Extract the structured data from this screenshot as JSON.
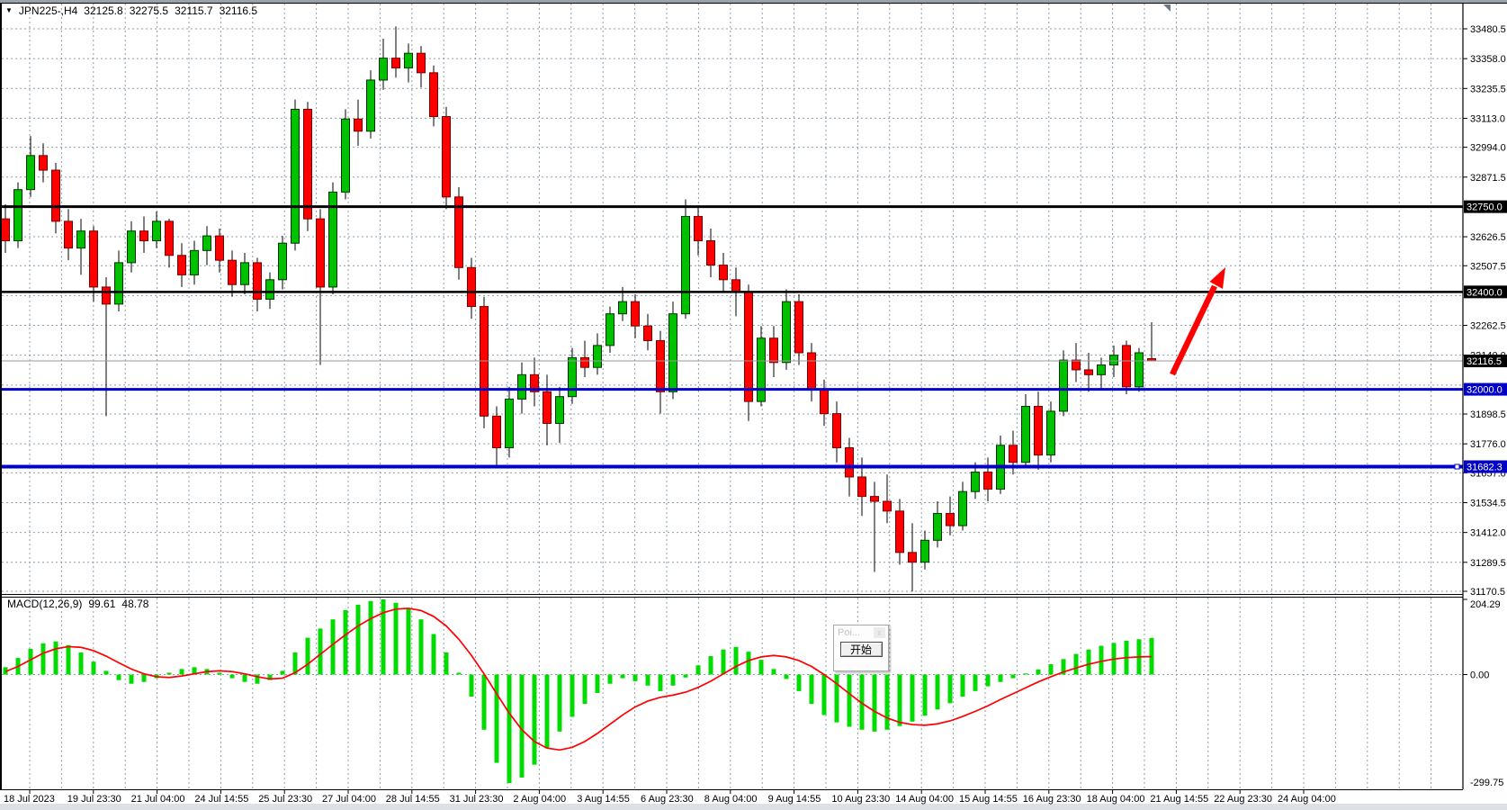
{
  "titlebar": {
    "dropdown_icon": "▼",
    "symbol_period": "JPN225-,H4",
    "open": "32125.8",
    "high": "32275.5",
    "low": "32115.7",
    "close": "32116.5"
  },
  "popup": {
    "title": "Poi...",
    "close_icon": "x",
    "start_button": "开始"
  },
  "chart_data": {
    "type": "candlestick",
    "title": "JPN225-,H4",
    "timeframe": "H4",
    "ylim": [
      31170.5,
      33480.5
    ],
    "grid_color": "#8d9cab",
    "colors": {
      "up": "#00c000",
      "down": "#ff0000",
      "up_border": "#003300",
      "down_border": "#7a0000",
      "histogram": "#00dc00",
      "signal": "#ff0000",
      "black_line": "#000000",
      "blue_line": "#0000c8",
      "arrow": "#ff0000",
      "current_price_line": "#9a9a9a"
    },
    "price_axis": {
      "grid_labels": [
        33480.5,
        33358.0,
        33235.5,
        33113.0,
        32994.0,
        32871.5,
        32626.5,
        32507.5,
        32262.5,
        32140.0,
        31898.5,
        31776.0,
        31657.0,
        31534.5,
        31412.0,
        31289.5,
        31170.5
      ],
      "hidden_grid_prices": [
        32749.0,
        32385.0,
        32017.5
      ]
    },
    "current_price": 32116.5,
    "hlines": [
      {
        "price": 32750.0,
        "label": "32750.0",
        "color": "#000000",
        "width": 3
      },
      {
        "price": 32400.0,
        "label": "32400.0",
        "color": "#000000",
        "width": 2.5
      },
      {
        "price": 32000.0,
        "label": "32000.0",
        "color": "#0000c8",
        "width": 3
      },
      {
        "price": 31682.3,
        "label": "31682.3",
        "color": "#0000c8",
        "width": 4
      }
    ],
    "candles": [
      [
        32700,
        32760,
        32560,
        32610
      ],
      [
        32610,
        32850,
        32580,
        32820
      ],
      [
        32820,
        33040,
        32790,
        32960
      ],
      [
        32960,
        33010,
        32850,
        32900
      ],
      [
        32900,
        32930,
        32640,
        32690
      ],
      [
        32690,
        32740,
        32530,
        32580
      ],
      [
        32580,
        32700,
        32470,
        32650
      ],
      [
        32650,
        32670,
        32360,
        32420
      ],
      [
        32420,
        32460,
        31890,
        32350
      ],
      [
        32350,
        32570,
        32320,
        32520
      ],
      [
        32520,
        32690,
        32480,
        32650
      ],
      [
        32650,
        32710,
        32560,
        32610
      ],
      [
        32610,
        32730,
        32580,
        32690
      ],
      [
        32690,
        32700,
        32500,
        32550
      ],
      [
        32550,
        32600,
        32420,
        32470
      ],
      [
        32470,
        32610,
        32430,
        32570
      ],
      [
        32570,
        32670,
        32510,
        32630
      ],
      [
        32630,
        32660,
        32480,
        32530
      ],
      [
        32530,
        32570,
        32380,
        32430
      ],
      [
        32430,
        32560,
        32390,
        32520
      ],
      [
        32520,
        32540,
        32320,
        32370
      ],
      [
        32370,
        32480,
        32330,
        32450
      ],
      [
        32450,
        32630,
        32410,
        32600
      ],
      [
        32600,
        33190,
        32570,
        33150
      ],
      [
        33150,
        33180,
        32650,
        32700
      ],
      [
        32700,
        32740,
        32100,
        32420
      ],
      [
        32420,
        32850,
        32390,
        32810
      ],
      [
        32810,
        33150,
        32780,
        33110
      ],
      [
        33110,
        33190,
        33000,
        33060
      ],
      [
        33060,
        33310,
        33030,
        33270
      ],
      [
        33270,
        33440,
        33230,
        33360
      ],
      [
        33360,
        33490,
        33280,
        33320
      ],
      [
        33320,
        33420,
        33260,
        33380
      ],
      [
        33380,
        33410,
        33240,
        33300
      ],
      [
        33300,
        33330,
        33080,
        33120
      ],
      [
        33120,
        33160,
        32740,
        32790
      ],
      [
        32790,
        32830,
        32450,
        32500
      ],
      [
        32500,
        32540,
        32290,
        32340
      ],
      [
        32340,
        32380,
        31840,
        31890
      ],
      [
        31890,
        31930,
        31690,
        31760
      ],
      [
        31760,
        32010,
        31720,
        31960
      ],
      [
        31960,
        32110,
        31900,
        32060
      ],
      [
        32060,
        32130,
        31930,
        31990
      ],
      [
        31990,
        32060,
        31770,
        31860
      ],
      [
        31860,
        32010,
        31780,
        31970
      ],
      [
        31970,
        32170,
        31940,
        32130
      ],
      [
        32130,
        32200,
        32050,
        32090
      ],
      [
        32090,
        32230,
        32060,
        32180
      ],
      [
        32180,
        32340,
        32150,
        32310
      ],
      [
        32310,
        32420,
        32280,
        32360
      ],
      [
        32360,
        32390,
        32210,
        32260
      ],
      [
        32260,
        32310,
        32160,
        32200
      ],
      [
        32200,
        32240,
        31900,
        31990
      ],
      [
        31990,
        32360,
        31960,
        32310
      ],
      [
        32310,
        32780,
        32290,
        32710
      ],
      [
        32710,
        32750,
        32550,
        32610
      ],
      [
        32610,
        32660,
        32460,
        32510
      ],
      [
        32510,
        32560,
        32400,
        32450
      ],
      [
        32450,
        32500,
        32300,
        32400
      ],
      [
        32400,
        32430,
        31870,
        31950
      ],
      [
        31950,
        32260,
        31930,
        32210
      ],
      [
        32210,
        32260,
        32050,
        32110
      ],
      [
        32110,
        32410,
        32080,
        32360
      ],
      [
        32360,
        32390,
        32100,
        32150
      ],
      [
        32150,
        32190,
        31950,
        32000
      ],
      [
        32000,
        32040,
        31850,
        31900
      ],
      [
        31900,
        31950,
        31700,
        31760
      ],
      [
        31760,
        31800,
        31560,
        31640
      ],
      [
        31640,
        31720,
        31480,
        31560
      ],
      [
        31560,
        31620,
        31250,
        31540
      ],
      [
        31540,
        31650,
        31450,
        31500
      ],
      [
        31500,
        31550,
        31280,
        31330
      ],
      [
        31330,
        31450,
        31170,
        31290
      ],
      [
        31290,
        31420,
        31260,
        31380
      ],
      [
        31380,
        31540,
        31350,
        31490
      ],
      [
        31490,
        31560,
        31400,
        31440
      ],
      [
        31440,
        31620,
        31420,
        31580
      ],
      [
        31580,
        31700,
        31550,
        31660
      ],
      [
        31660,
        31720,
        31540,
        31590
      ],
      [
        31590,
        31810,
        31570,
        31770
      ],
      [
        31770,
        31830,
        31650,
        31700
      ],
      [
        31700,
        31980,
        31680,
        31930
      ],
      [
        31930,
        31990,
        31670,
        31730
      ],
      [
        31730,
        31950,
        31700,
        31910
      ],
      [
        31910,
        32160,
        31890,
        32120
      ],
      [
        32120,
        32190,
        32030,
        32080
      ],
      [
        32080,
        32150,
        31990,
        32060
      ],
      [
        32060,
        32130,
        32000,
        32100
      ],
      [
        32100,
        32180,
        32050,
        32140
      ],
      [
        32180,
        32200,
        31980,
        32010
      ],
      [
        32010,
        32170,
        31990,
        32150
      ],
      [
        32125.8,
        32275.5,
        32115.7,
        32116.5
      ]
    ],
    "macd": {
      "label": "MACD(12,26,9)",
      "macd_value": "99.61",
      "signal_value": "48.78",
      "axis_max": 204.29,
      "axis_zero": "0.00",
      "axis_min": -299.75,
      "histogram": [
        20,
        45,
        70,
        85,
        90,
        80,
        60,
        35,
        10,
        -15,
        -25,
        -20,
        -10,
        5,
        15,
        20,
        15,
        5,
        -10,
        -20,
        -25,
        -15,
        10,
        60,
        100,
        125,
        150,
        175,
        190,
        200,
        204.29,
        195,
        180,
        150,
        110,
        60,
        5,
        -60,
        -150,
        -240,
        -295,
        -280,
        -245,
        -200,
        -155,
        -115,
        -80,
        -50,
        -25,
        -10,
        -18,
        -30,
        -45,
        -30,
        -8,
        25,
        50,
        68,
        75,
        62,
        40,
        15,
        -12,
        -45,
        -80,
        -110,
        -130,
        -142,
        -150,
        -155,
        -150,
        -140,
        -128,
        -112,
        -95,
        -78,
        -60,
        -45,
        -32,
        -20,
        -10,
        3,
        14,
        28,
        42,
        56,
        68,
        78,
        86,
        92,
        96,
        99.61
      ],
      "signal": [
        8,
        22,
        40,
        58,
        70,
        76,
        74,
        65,
        50,
        32,
        15,
        2,
        -6,
        -8,
        -4,
        2,
        8,
        10,
        8,
        2,
        -6,
        -12,
        -10,
        5,
        28,
        55,
        82,
        108,
        132,
        152,
        168,
        178,
        180,
        174,
        158,
        132,
        96,
        52,
        2,
        -52,
        -105,
        -150,
        -182,
        -200,
        -205,
        -198,
        -182,
        -160,
        -135,
        -110,
        -88,
        -72,
        -62,
        -56,
        -48,
        -35,
        -18,
        2,
        22,
        38,
        48,
        52,
        48,
        38,
        22,
        0,
        -25,
        -52,
        -78,
        -100,
        -118,
        -130,
        -136,
        -138,
        -134,
        -126,
        -114,
        -100,
        -85,
        -68,
        -52,
        -36,
        -20,
        -6,
        7,
        18,
        28,
        36,
        42,
        46,
        48,
        48.78
      ]
    },
    "x_labels": [
      "18 Jul 2023",
      "19 Jul 23:30",
      "21 Jul 04:00",
      "24 Jul 14:55",
      "25 Jul 23:30",
      "27 Jul 04:00",
      "28 Jul 14:55",
      "31 Jul 23:30",
      "2 Aug 04:00",
      "3 Aug 14:55",
      "6 Aug 23:30",
      "8 Aug 04:00",
      "9 Aug 14:55",
      "10 Aug 23:30",
      "14 Aug 04:00",
      "15 Aug 14:55",
      "16 Aug 23:30",
      "18 Aug 04:00",
      "21 Aug 14:55",
      "22 Aug 23:30",
      "24 Aug 04:00"
    ]
  }
}
